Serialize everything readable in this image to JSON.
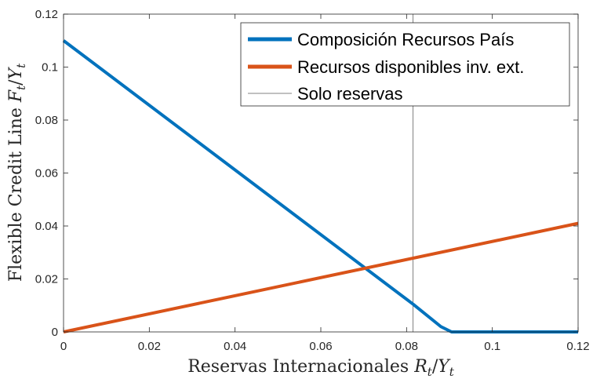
{
  "chart_data": {
    "type": "line",
    "xlabel_text": "Reservas Internacionales",
    "xlabel_math": "R",
    "xlabel_math_sub": "t",
    "xlabel_slash": "/",
    "xlabel_math2": "Y",
    "xlabel_math2_sub": "t",
    "ylabel_text": "Flexible Credit Line",
    "ylabel_math": "F",
    "ylabel_math_sub": "t",
    "ylabel_slash": "/",
    "ylabel_math2": "Y",
    "ylabel_math2_sub": "t",
    "xlim": [
      0,
      0.12
    ],
    "ylim": [
      0,
      0.12
    ],
    "xticks": [
      "0",
      "0.02",
      "0.04",
      "0.06",
      "0.08",
      "0.1",
      "0.12"
    ],
    "yticks": [
      "0",
      "0.02",
      "0.04",
      "0.06",
      "0.08",
      "0.1",
      "0.12"
    ],
    "xtick_values": [
      0,
      0.02,
      0.04,
      0.06,
      0.08,
      0.1,
      0.12
    ],
    "ytick_values": [
      0,
      0.02,
      0.04,
      0.06,
      0.08,
      0.1,
      0.12
    ],
    "grid": false,
    "legend_position": "top-right",
    "series": [
      {
        "name": "Composición Recursos País",
        "color": "#0072BD",
        "x": [
          0,
          0.0815,
          0.088,
          0.0905,
          0.12
        ],
        "y": [
          0.11,
          0.0105,
          0.002,
          0,
          0
        ]
      },
      {
        "name": "Recursos disponibles inv. ext.",
        "color": "#D95319",
        "x": [
          0,
          0.12
        ],
        "y": [
          0,
          0.041
        ]
      },
      {
        "name": "Solo reservas",
        "color": "#808080",
        "x": [
          0.0815,
          0.0815
        ],
        "y": [
          0,
          0.12
        ]
      }
    ]
  }
}
